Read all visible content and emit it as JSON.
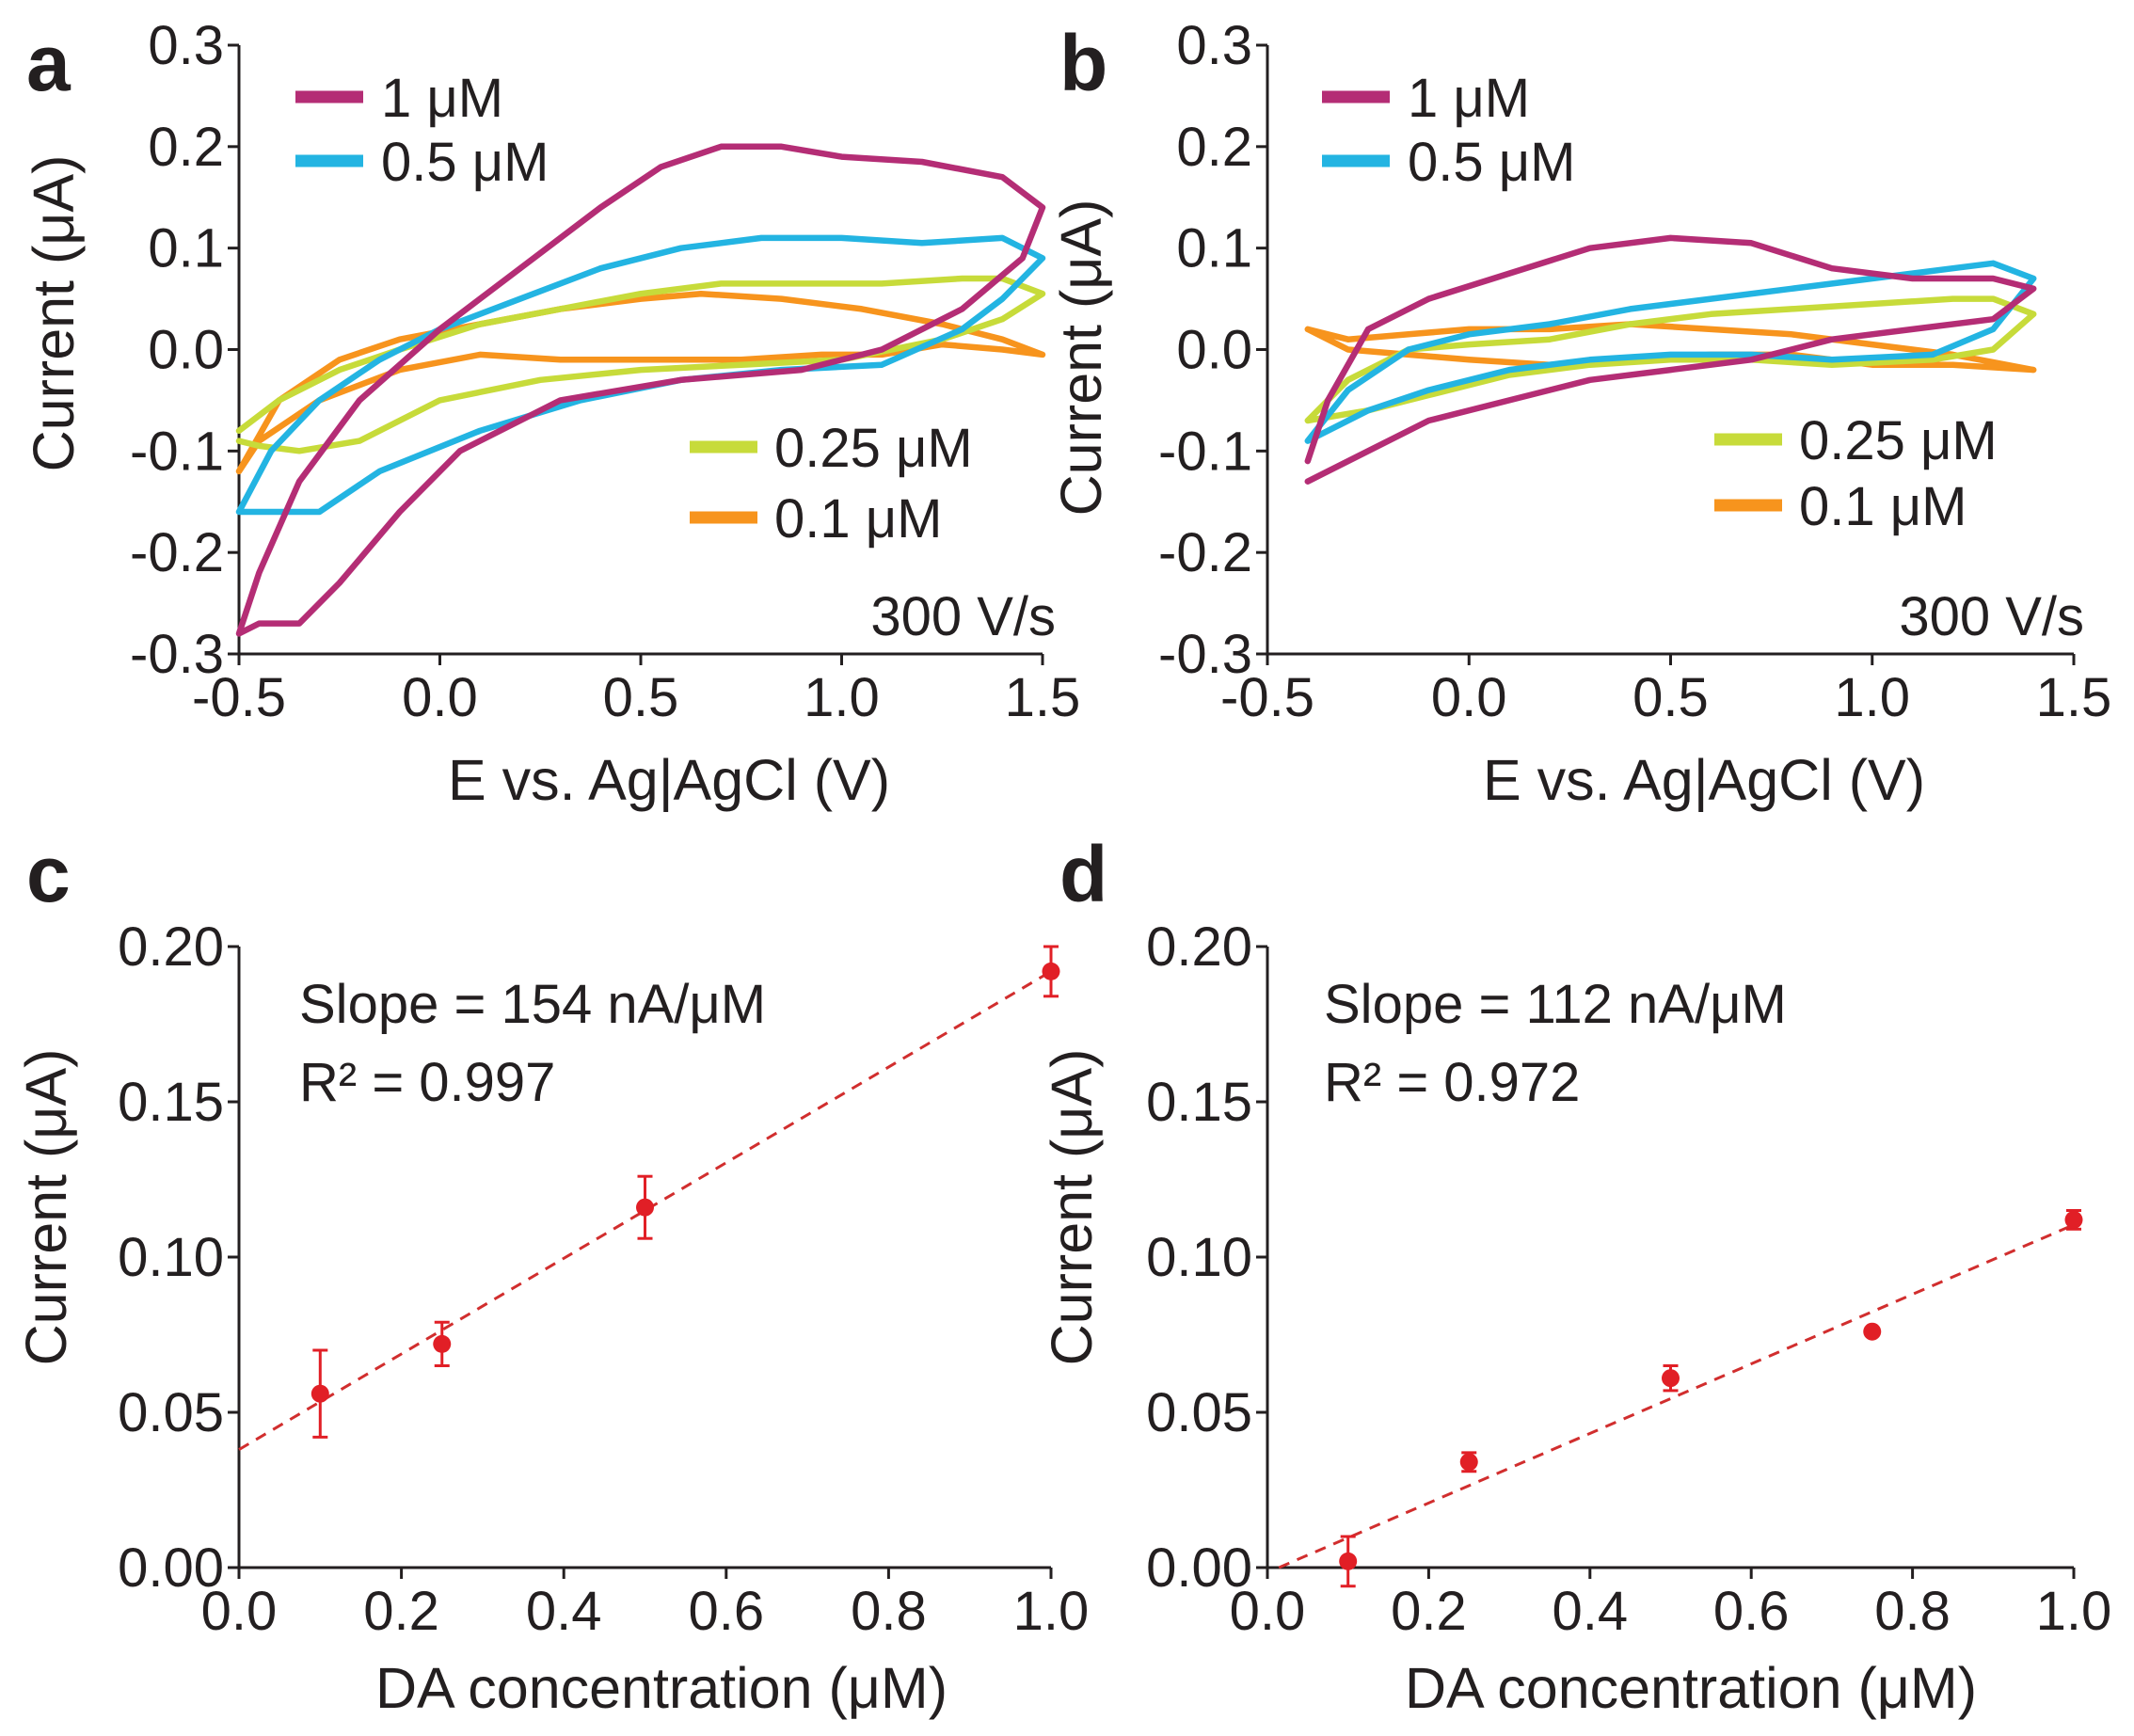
{
  "colors": {
    "c1uM": "#b42d75",
    "c05uM": "#23b4e2",
    "c025uM": "#c7db3a",
    "c01uM": "#f7941d",
    "point": "#e11f26",
    "fit": "#d12e2e",
    "axis": "#231f20"
  },
  "chart_data": [
    {
      "panel": "a",
      "type": "line",
      "xlabel": "E vs. Ag|AgCl (V)",
      "ylabel": "Current (μA)",
      "xlim": [
        -0.5,
        1.5
      ],
      "ylim": [
        -0.3,
        0.3
      ],
      "xticks": [
        -0.5,
        0.0,
        0.5,
        1.0,
        1.5
      ],
      "xtick_labels": [
        "-0.5",
        "0.0",
        "0.5",
        "1.0",
        "1.5"
      ],
      "yticks": [
        -0.3,
        -0.2,
        -0.1,
        0.0,
        0.1,
        0.2,
        0.3
      ],
      "ytick_labels": [
        "-0.3",
        "-0.2",
        "-0.1",
        "0.0",
        "0.1",
        "0.2",
        "0.3"
      ],
      "annotation": "300 V/s",
      "series": [
        {
          "name": "1 μM",
          "color_key": "c1uM",
          "points": [
            [
              -0.5,
              -0.28
            ],
            [
              -0.45,
              -0.22
            ],
            [
              -0.35,
              -0.13
            ],
            [
              -0.2,
              -0.05
            ],
            [
              0.0,
              0.02
            ],
            [
              0.2,
              0.08
            ],
            [
              0.4,
              0.14
            ],
            [
              0.55,
              0.18
            ],
            [
              0.7,
              0.2
            ],
            [
              0.85,
              0.2
            ],
            [
              1.0,
              0.19
            ],
            [
              1.2,
              0.185
            ],
            [
              1.4,
              0.17
            ],
            [
              1.5,
              0.14
            ],
            [
              1.45,
              0.09
            ],
            [
              1.3,
              0.04
            ],
            [
              1.1,
              0.0
            ],
            [
              0.9,
              -0.02
            ],
            [
              0.6,
              -0.03
            ],
            [
              0.3,
              -0.05
            ],
            [
              0.05,
              -0.1
            ],
            [
              -0.1,
              -0.16
            ],
            [
              -0.25,
              -0.23
            ],
            [
              -0.35,
              -0.27
            ],
            [
              -0.45,
              -0.27
            ],
            [
              -0.5,
              -0.28
            ]
          ]
        },
        {
          "name": "0.5 μM",
          "color_key": "c05uM",
          "points": [
            [
              -0.5,
              -0.16
            ],
            [
              -0.42,
              -0.1
            ],
            [
              -0.3,
              -0.05
            ],
            [
              -0.15,
              -0.01
            ],
            [
              0.0,
              0.02
            ],
            [
              0.2,
              0.05
            ],
            [
              0.4,
              0.08
            ],
            [
              0.6,
              0.1
            ],
            [
              0.8,
              0.11
            ],
            [
              1.0,
              0.11
            ],
            [
              1.2,
              0.105
            ],
            [
              1.4,
              0.11
            ],
            [
              1.5,
              0.09
            ],
            [
              1.4,
              0.05
            ],
            [
              1.3,
              0.02
            ],
            [
              1.1,
              -0.015
            ],
            [
              0.85,
              -0.02
            ],
            [
              0.6,
              -0.03
            ],
            [
              0.35,
              -0.05
            ],
            [
              0.1,
              -0.08
            ],
            [
              -0.15,
              -0.12
            ],
            [
              -0.3,
              -0.16
            ],
            [
              -0.45,
              -0.16
            ],
            [
              -0.5,
              -0.16
            ]
          ]
        },
        {
          "name": "0.25 μM",
          "color_key": "c025uM",
          "points": [
            [
              -0.5,
              -0.08
            ],
            [
              -0.4,
              -0.05
            ],
            [
              -0.25,
              -0.02
            ],
            [
              -0.1,
              0.0
            ],
            [
              0.1,
              0.025
            ],
            [
              0.3,
              0.04
            ],
            [
              0.5,
              0.055
            ],
            [
              0.7,
              0.065
            ],
            [
              0.9,
              0.065
            ],
            [
              1.1,
              0.065
            ],
            [
              1.3,
              0.07
            ],
            [
              1.4,
              0.07
            ],
            [
              1.5,
              0.055
            ],
            [
              1.4,
              0.03
            ],
            [
              1.25,
              0.01
            ],
            [
              1.0,
              -0.01
            ],
            [
              0.75,
              -0.015
            ],
            [
              0.5,
              -0.02
            ],
            [
              0.25,
              -0.03
            ],
            [
              0.0,
              -0.05
            ],
            [
              -0.2,
              -0.09
            ],
            [
              -0.35,
              -0.1
            ],
            [
              -0.45,
              -0.095
            ],
            [
              -0.5,
              -0.09
            ]
          ]
        },
        {
          "name": "0.1 μM",
          "color_key": "c01uM",
          "points": [
            [
              -0.5,
              -0.12
            ],
            [
              -0.4,
              -0.05
            ],
            [
              -0.25,
              -0.01
            ],
            [
              -0.1,
              0.01
            ],
            [
              0.1,
              0.025
            ],
            [
              0.3,
              0.04
            ],
            [
              0.5,
              0.05
            ],
            [
              0.65,
              0.055
            ],
            [
              0.85,
              0.05
            ],
            [
              1.05,
              0.04
            ],
            [
              1.25,
              0.025
            ],
            [
              1.4,
              0.01
            ],
            [
              1.5,
              -0.005
            ],
            [
              1.4,
              0.0
            ],
            [
              1.25,
              0.005
            ],
            [
              1.1,
              -0.005
            ],
            [
              0.95,
              -0.005
            ],
            [
              0.75,
              -0.01
            ],
            [
              0.5,
              -0.01
            ],
            [
              0.3,
              -0.01
            ],
            [
              0.1,
              -0.005
            ],
            [
              -0.1,
              -0.02
            ],
            [
              -0.3,
              -0.05
            ],
            [
              -0.45,
              -0.09
            ],
            [
              -0.5,
              -0.12
            ]
          ]
        }
      ]
    },
    {
      "panel": "b",
      "type": "line",
      "xlabel": "E vs. Ag|AgCl (V)",
      "ylabel": "Current (μA)",
      "xlim": [
        -0.5,
        1.5
      ],
      "ylim": [
        -0.3,
        0.3
      ],
      "xticks": [
        -0.5,
        0.0,
        0.5,
        1.0,
        1.5
      ],
      "xtick_labels": [
        "-0.5",
        "0.0",
        "0.5",
        "1.0",
        "1.5"
      ],
      "yticks": [
        -0.3,
        -0.2,
        -0.1,
        0.0,
        0.1,
        0.2,
        0.3
      ],
      "ytick_labels": [
        "-0.3",
        "-0.2",
        "-0.1",
        "0.0",
        "0.1",
        "0.2",
        "0.3"
      ],
      "annotation": "300 V/s",
      "series": [
        {
          "name": "1 μM",
          "color_key": "c1uM",
          "points": [
            [
              -0.4,
              -0.11
            ],
            [
              -0.35,
              -0.05
            ],
            [
              -0.25,
              0.02
            ],
            [
              -0.1,
              0.05
            ],
            [
              0.1,
              0.075
            ],
            [
              0.3,
              0.1
            ],
            [
              0.5,
              0.11
            ],
            [
              0.7,
              0.105
            ],
            [
              0.9,
              0.08
            ],
            [
              1.1,
              0.07
            ],
            [
              1.3,
              0.07
            ],
            [
              1.4,
              0.06
            ],
            [
              1.3,
              0.03
            ],
            [
              1.1,
              0.02
            ],
            [
              0.9,
              0.01
            ],
            [
              0.7,
              -0.01
            ],
            [
              0.5,
              -0.02
            ],
            [
              0.3,
              -0.03
            ],
            [
              0.1,
              -0.05
            ],
            [
              -0.1,
              -0.07
            ],
            [
              -0.25,
              -0.1
            ],
            [
              -0.4,
              -0.13
            ]
          ]
        },
        {
          "name": "0.5 μM",
          "color_key": "c05uM",
          "points": [
            [
              -0.4,
              -0.09
            ],
            [
              -0.3,
              -0.04
            ],
            [
              -0.15,
              0.0
            ],
            [
              0.0,
              0.015
            ],
            [
              0.2,
              0.025
            ],
            [
              0.4,
              0.04
            ],
            [
              0.6,
              0.05
            ],
            [
              0.8,
              0.06
            ],
            [
              1.0,
              0.07
            ],
            [
              1.2,
              0.08
            ],
            [
              1.3,
              0.085
            ],
            [
              1.4,
              0.07
            ],
            [
              1.3,
              0.02
            ],
            [
              1.15,
              -0.005
            ],
            [
              0.9,
              -0.01
            ],
            [
              0.7,
              -0.005
            ],
            [
              0.5,
              -0.005
            ],
            [
              0.3,
              -0.01
            ],
            [
              0.1,
              -0.02
            ],
            [
              -0.1,
              -0.04
            ],
            [
              -0.25,
              -0.06
            ],
            [
              -0.4,
              -0.09
            ]
          ]
        },
        {
          "name": "0.25 μM",
          "color_key": "c025uM",
          "points": [
            [
              -0.4,
              -0.07
            ],
            [
              -0.3,
              -0.03
            ],
            [
              -0.15,
              0.0
            ],
            [
              0.0,
              0.005
            ],
            [
              0.2,
              0.01
            ],
            [
              0.4,
              0.025
            ],
            [
              0.6,
              0.035
            ],
            [
              0.8,
              0.04
            ],
            [
              1.0,
              0.045
            ],
            [
              1.2,
              0.05
            ],
            [
              1.3,
              0.05
            ],
            [
              1.4,
              0.035
            ],
            [
              1.3,
              0.0
            ],
            [
              1.15,
              -0.01
            ],
            [
              0.9,
              -0.015
            ],
            [
              0.7,
              -0.01
            ],
            [
              0.5,
              -0.01
            ],
            [
              0.3,
              -0.015
            ],
            [
              0.1,
              -0.025
            ],
            [
              -0.1,
              -0.045
            ],
            [
              -0.25,
              -0.06
            ],
            [
              -0.4,
              -0.07
            ]
          ]
        },
        {
          "name": "0.1 μM",
          "color_key": "c01uM",
          "points": [
            [
              -0.4,
              0.02
            ],
            [
              -0.3,
              0.01
            ],
            [
              -0.15,
              0.015
            ],
            [
              0.0,
              0.02
            ],
            [
              0.2,
              0.02
            ],
            [
              0.4,
              0.025
            ],
            [
              0.6,
              0.02
            ],
            [
              0.8,
              0.015
            ],
            [
              1.0,
              0.005
            ],
            [
              1.2,
              -0.005
            ],
            [
              1.4,
              -0.02
            ],
            [
              1.2,
              -0.015
            ],
            [
              1.0,
              -0.015
            ],
            [
              0.8,
              -0.005
            ],
            [
              0.6,
              -0.005
            ],
            [
              0.4,
              -0.01
            ],
            [
              0.2,
              -0.015
            ],
            [
              0.0,
              -0.01
            ],
            [
              -0.15,
              -0.005
            ],
            [
              -0.3,
              0.0
            ],
            [
              -0.4,
              0.02
            ]
          ]
        }
      ]
    },
    {
      "panel": "c",
      "type": "scatter",
      "xlabel": "DA concentration (μM)",
      "ylabel": "Current (μA)",
      "xlim": [
        0.0,
        1.0
      ],
      "ylim": [
        0.0,
        0.2
      ],
      "xticks": [
        0.0,
        0.2,
        0.4,
        0.6,
        0.8,
        1.0
      ],
      "xtick_labels": [
        "0.0",
        "0.2",
        "0.4",
        "0.6",
        "0.8",
        "1.0"
      ],
      "yticks": [
        0.0,
        0.05,
        0.1,
        0.15,
        0.2
      ],
      "ytick_labels": [
        "0.00",
        "0.05",
        "0.10",
        "0.15",
        "0.20"
      ],
      "slope_text": "Slope = 154 nA/μM",
      "r2_text": "R² = 0.997",
      "x": [
        0.1,
        0.25,
        0.5,
        1.0
      ],
      "y": [
        0.056,
        0.072,
        0.116,
        0.192
      ],
      "err": [
        0.014,
        0.007,
        0.01,
        0.008
      ],
      "fit": {
        "slope": 0.154,
        "intercept": 0.038
      }
    },
    {
      "panel": "d",
      "type": "scatter",
      "xlabel": "DA concentration (μM)",
      "ylabel": "Current (μA)",
      "xlim": [
        0.0,
        1.0
      ],
      "ylim": [
        0.0,
        0.2
      ],
      "xticks": [
        0.0,
        0.2,
        0.4,
        0.6,
        0.8,
        1.0
      ],
      "xtick_labels": [
        "0.0",
        "0.2",
        "0.4",
        "0.6",
        "0.8",
        "1.0"
      ],
      "yticks": [
        0.0,
        0.05,
        0.1,
        0.15,
        0.2
      ],
      "ytick_labels": [
        "0.00",
        "0.05",
        "0.10",
        "0.15",
        "0.20"
      ],
      "slope_text": "Slope = 112 nA/μM",
      "r2_text": "R² = 0.972",
      "x": [
        0.1,
        0.25,
        0.5,
        0.75,
        1.0
      ],
      "y": [
        0.002,
        0.034,
        0.061,
        0.076,
        0.112
      ],
      "err": [
        0.008,
        0.003,
        0.004,
        0.001,
        0.003
      ],
      "fit": {
        "slope": 0.112,
        "intercept": -0.0016
      }
    }
  ]
}
